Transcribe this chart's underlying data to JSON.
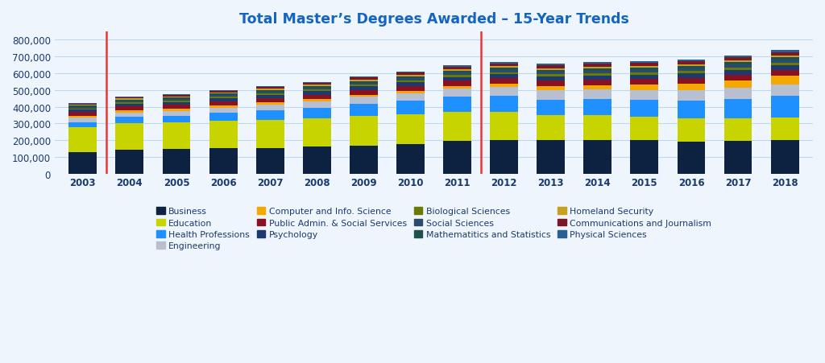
{
  "title": "Total Master’s Degrees Awarded – 15-Year Trends",
  "years": [
    2003,
    2004,
    2005,
    2006,
    2007,
    2008,
    2009,
    2010,
    2011,
    2012,
    2013,
    2014,
    2015,
    2016,
    2017,
    2018
  ],
  "categories": [
    "Business",
    "Education",
    "Health Professions",
    "Engineering",
    "Computer and Info. Science",
    "Public Admin. & Social Services",
    "Psychology",
    "Biological Sciences",
    "Social Sciences",
    "Mathematitics and Statistics",
    "Homeland Security",
    "Communications and Journalism",
    "Physical Sciences"
  ],
  "colors": [
    "#0d2240",
    "#c8d400",
    "#1e90ff",
    "#b8bfd0",
    "#f5a800",
    "#8b1020",
    "#1a3a70",
    "#6b7a00",
    "#2a4a6e",
    "#1e5050",
    "#c8a020",
    "#7b1828",
    "#2a6090"
  ],
  "data": {
    "Business": [
      130000,
      142000,
      146000,
      150000,
      153000,
      160000,
      165000,
      178000,
      194000,
      200000,
      200000,
      200000,
      198000,
      192000,
      195000,
      200000
    ],
    "Education": [
      145000,
      158000,
      158000,
      168000,
      170000,
      172000,
      178000,
      175000,
      175000,
      170000,
      148000,
      148000,
      143000,
      138000,
      135000,
      135000
    ],
    "Health Professions": [
      32000,
      38000,
      40000,
      45000,
      55000,
      62000,
      75000,
      85000,
      90000,
      95000,
      95000,
      97000,
      100000,
      108000,
      118000,
      128000
    ],
    "Engineering": [
      26000,
      28000,
      30000,
      32000,
      34000,
      38000,
      40000,
      43000,
      48000,
      52000,
      55000,
      57000,
      60000,
      62000,
      66000,
      70000
    ],
    "Computer and Info. Science": [
      14000,
      14000,
      14000,
      14000,
      14000,
      14000,
      14000,
      14000,
      18000,
      22000,
      26000,
      28000,
      32000,
      38000,
      44000,
      52000
    ],
    "Public Admin. & Social Services": [
      20000,
      22000,
      23000,
      24000,
      25000,
      26000,
      28000,
      30000,
      30000,
      31000,
      32000,
      32000,
      32000,
      33000,
      34000,
      35000
    ],
    "Psychology": [
      16000,
      16000,
      17000,
      18000,
      19000,
      20000,
      21000,
      22000,
      23000,
      24000,
      25000,
      26000,
      27000,
      28000,
      29000,
      30000
    ],
    "Biological Sciences": [
      7000,
      7500,
      8000,
      8500,
      9000,
      9500,
      10000,
      10500,
      11000,
      11500,
      12000,
      12500,
      13000,
      13500,
      14000,
      14500
    ],
    "Social Sciences": [
      10000,
      10500,
      11000,
      11500,
      12000,
      12500,
      13000,
      13500,
      14000,
      14500,
      15000,
      15500,
      16000,
      16500,
      17000,
      17500
    ],
    "Mathematitics and Statistics": [
      7000,
      7500,
      8000,
      8500,
      9000,
      9500,
      10000,
      10500,
      11000,
      11500,
      12000,
      12500,
      13000,
      13500,
      14000,
      14500
    ],
    "Homeland Security": [
      4000,
      5000,
      5500,
      6000,
      6500,
      7000,
      8000,
      9000,
      10000,
      11000,
      11000,
      11000,
      11000,
      11000,
      11000,
      11000
    ],
    "Communications and Journalism": [
      8000,
      9000,
      9500,
      10000,
      10500,
      11000,
      12000,
      13000,
      14000,
      15000,
      16000,
      16500,
      17000,
      18000,
      19000,
      20000
    ],
    "Physical Sciences": [
      4000,
      4500,
      5000,
      5500,
      6000,
      6500,
      7000,
      7500,
      8000,
      8500,
      9000,
      9500,
      10000,
      10500,
      11000,
      11500
    ]
  },
  "vline_x": [
    0.5,
    8.5
  ],
  "ylim": [
    0,
    850000
  ],
  "yticks": [
    0,
    100000,
    200000,
    300000,
    400000,
    500000,
    600000,
    700000,
    800000
  ],
  "background_color": "#eef5fc",
  "title_color": "#1565C0",
  "vline_color": "#ee3333",
  "grid_color": "#c0d8ee",
  "tick_color": "#1a3a6e",
  "bar_width": 0.6
}
